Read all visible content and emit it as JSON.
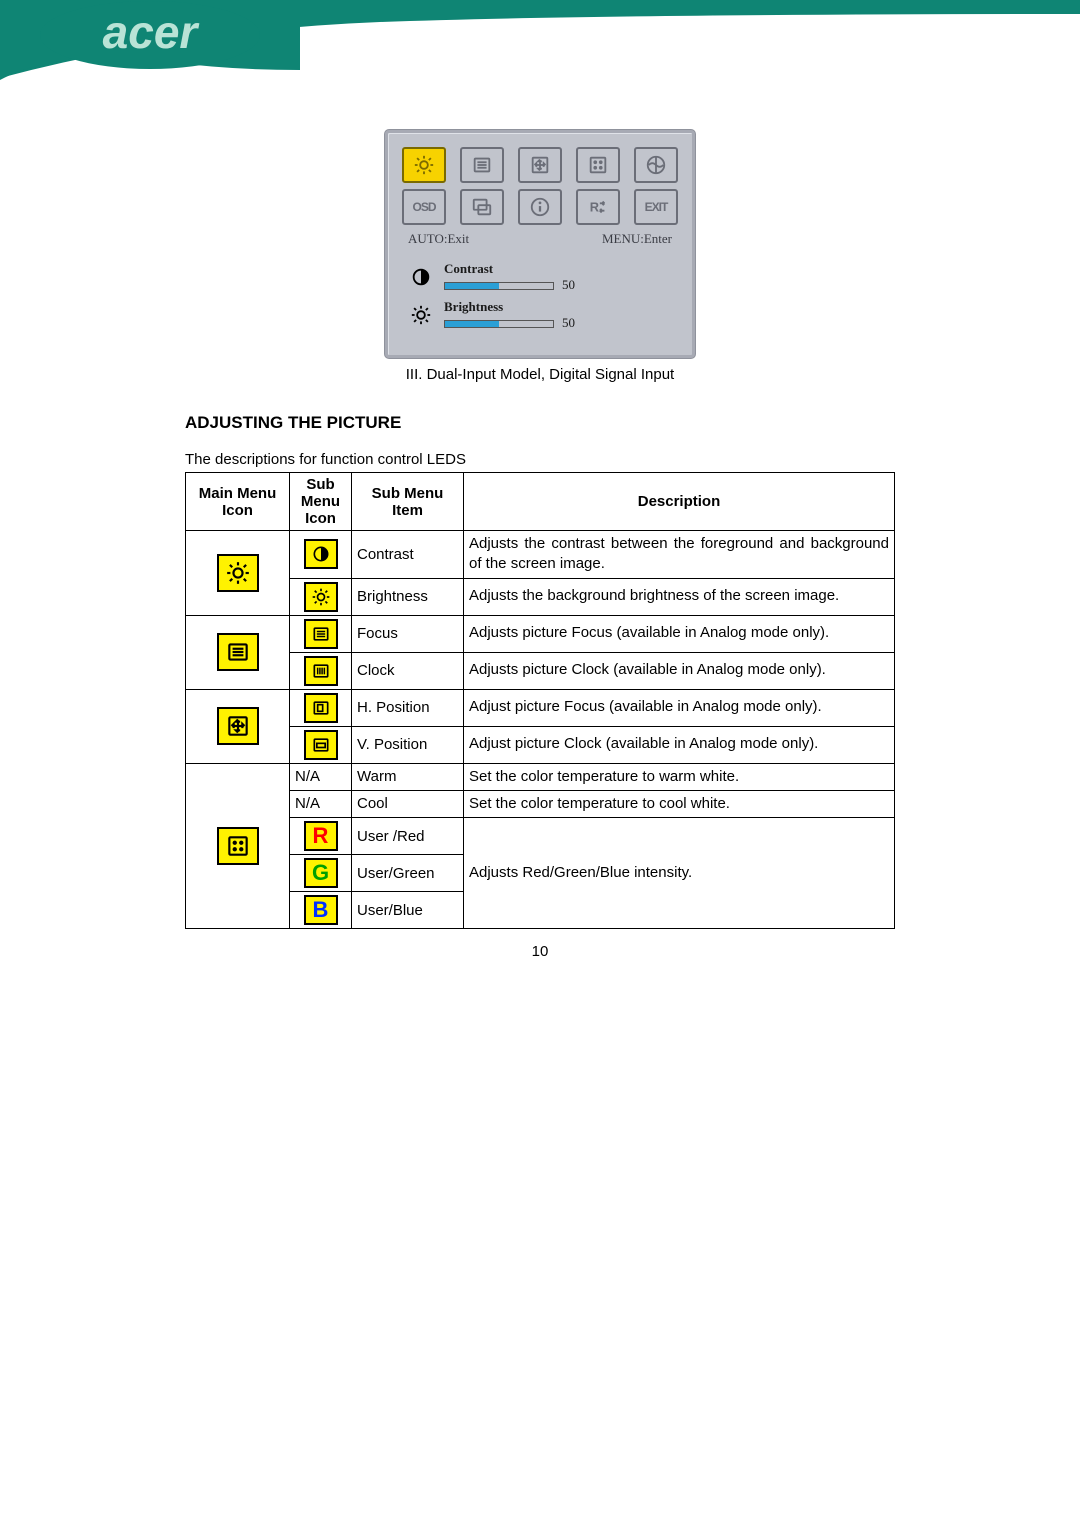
{
  "logo_text": "acer",
  "banner": {
    "bg": "#0f8574",
    "logo_fill": "#b9e3d6"
  },
  "osd": {
    "bg": "#c1c4cc",
    "sel_bg": "#f7d200",
    "icon_color": "#6b6e78",
    "row1_icons": [
      "brightness",
      "tracking",
      "position",
      "color",
      "osd-pos"
    ],
    "row2_icons": [
      "osd-label",
      "language",
      "info",
      "recall",
      "exit"
    ],
    "selected_index": 0,
    "bottom_left": "AUTO:Exit",
    "bottom_right": "MENU:Enter",
    "sliders": [
      {
        "icon": "contrast",
        "label": "Contrast",
        "value": 50,
        "max": 100
      },
      {
        "icon": "brightness",
        "label": "Brightness",
        "value": 50,
        "max": 100
      }
    ]
  },
  "caption": "III. Dual-Input Model, Digital Signal Input",
  "section_title": "ADJUSTING THE PICTURE",
  "intro": "The descriptions for function control LEDS",
  "headers": {
    "main": "Main Menu Icon",
    "sub": "Sub Menu Icon",
    "item": "Sub Menu Item",
    "desc": "Description"
  },
  "groups": [
    {
      "main_icon": "brightness",
      "rows": [
        {
          "sub_icon": "contrast",
          "item": "Contrast",
          "desc": "Adjusts the contrast between the foreground and background of the screen image.",
          "first_line_justify": true
        },
        {
          "sub_icon": "brightness",
          "item": "Brightness",
          "desc": "Adjusts the background brightness of the screen image."
        }
      ]
    },
    {
      "main_icon": "tracking",
      "rows": [
        {
          "sub_icon": "focus",
          "item": "Focus",
          "desc": "Adjusts picture Focus (available in Analog mode only)."
        },
        {
          "sub_icon": "clock",
          "item": "Clock",
          "desc": "Adjusts picture Clock (available in Analog mode only)."
        }
      ]
    },
    {
      "main_icon": "position",
      "rows": [
        {
          "sub_icon": "hpos",
          "item": "H. Position",
          "desc": "Adjust picture Focus (available in Analog mode only)."
        },
        {
          "sub_icon": "vpos",
          "item": "V. Position",
          "desc": "Adjust picture Clock (available in Analog mode only)."
        }
      ]
    },
    {
      "main_icon": "color",
      "rows": [
        {
          "sub_text": "N/A",
          "item": "Warm",
          "desc": "Set the color temperature to warm white."
        },
        {
          "sub_text": "N/A",
          "item": "Cool",
          "desc": "Set the color temperature to cool white."
        },
        {
          "sub_rgb": "R",
          "rgb_color": "#ff0000",
          "item": "User /Red",
          "desc_merged": "Adjusts Red/Green/Blue intensity.",
          "start_merge": true,
          "merge_rows": 3
        },
        {
          "sub_rgb": "G",
          "rgb_color": "#00a000",
          "item": "User/Green"
        },
        {
          "sub_rgb": "B",
          "rgb_color": "#0030ff",
          "item": "User/Blue"
        }
      ]
    }
  ],
  "page_number": "10"
}
